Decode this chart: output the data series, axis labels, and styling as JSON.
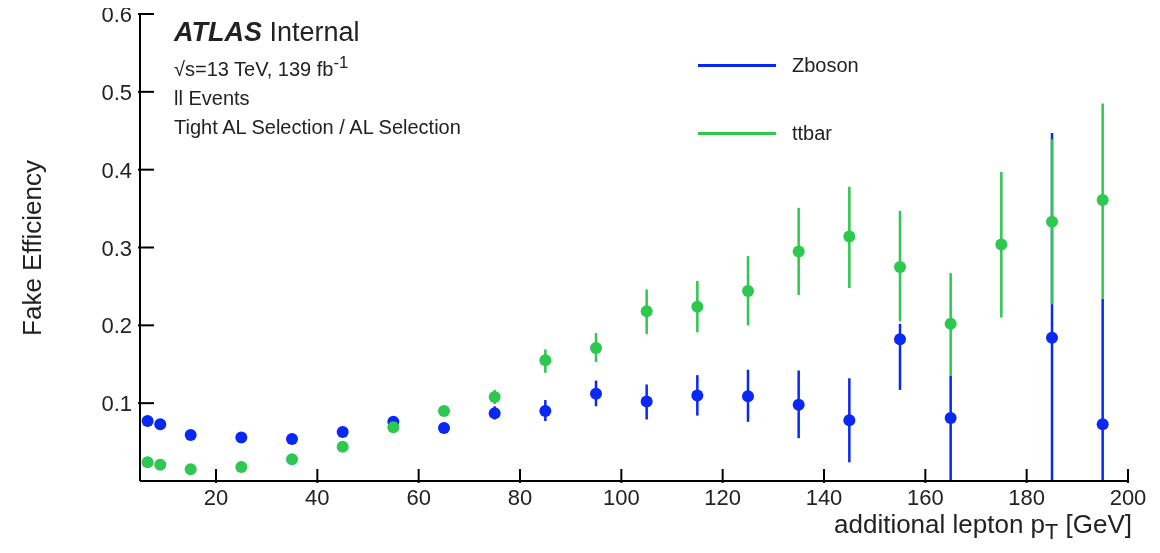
{
  "chart_data": {
    "type": "scatter",
    "xlabel": "additional lepton p$_{T}$ [GeV]",
    "ylabel": "Fake Efficiency",
    "annotations": [
      "ATLAS Internal",
      "√s=13 TeV, 139 fb$^{-1}$",
      "ll Events",
      "Tight AL Selection / AL Selection"
    ],
    "x": [
      6.5,
      9,
      15,
      25,
      35,
      45,
      55,
      65,
      75,
      85,
      95,
      105,
      115,
      125,
      135,
      145,
      155,
      165,
      175,
      185,
      195
    ],
    "series": [
      {
        "name": "Zboson",
        "color": "#0a28f5",
        "values": [
          0.077,
          0.073,
          0.059,
          0.056,
          0.054,
          0.063,
          0.076,
          0.068,
          0.087,
          0.09,
          0.112,
          0.102,
          0.11,
          0.109,
          0.098,
          0.078,
          0.182,
          0.081,
          null,
          0.184,
          0.073
        ],
        "errors": [
          null,
          null,
          null,
          null,
          null,
          null,
          null,
          null,
          [
            0.079,
            0.096
          ],
          [
            0.077,
            0.104
          ],
          [
            0.096,
            0.129
          ],
          [
            0.079,
            0.124
          ],
          [
            0.084,
            0.136
          ],
          [
            0.076,
            0.143
          ],
          [
            0.055,
            0.142
          ],
          [
            0.024,
            0.132
          ],
          [
            0.117,
            0.202
          ],
          [
            0,
            0.135
          ],
          null,
          [
            0,
            0.447
          ],
          [
            0,
            0.234
          ]
        ]
      },
      {
        "name": "ttbar",
        "color": "#2dc850",
        "values": [
          0.024,
          0.021,
          0.015,
          0.018,
          0.028,
          0.044,
          0.069,
          0.09,
          0.108,
          0.155,
          0.171,
          0.218,
          0.224,
          0.244,
          0.295,
          0.314,
          0.275,
          0.202,
          0.304,
          0.333,
          0.361
        ],
        "errors": [
          null,
          null,
          null,
          null,
          null,
          null,
          null,
          null,
          [
            0.099,
            0.117
          ],
          [
            0.139,
            0.169
          ],
          [
            0.153,
            0.19
          ],
          [
            0.189,
            0.246
          ],
          [
            0.191,
            0.257
          ],
          [
            0.2,
            0.289
          ],
          [
            0.239,
            0.351
          ],
          [
            0.248,
            0.378
          ],
          [
            0.205,
            0.347
          ],
          [
            0.135,
            0.267
          ],
          [
            0.21,
            0.397
          ],
          [
            0.227,
            0.439
          ],
          [
            0.234,
            0.485
          ]
        ]
      }
    ],
    "xlim": [
      5,
      200
    ],
    "xticks": [
      20,
      40,
      60,
      80,
      100,
      120,
      140,
      160,
      180,
      200
    ],
    "ylim": [
      0,
      0.6
    ],
    "yticks": [
      0.1,
      0.2,
      0.3,
      0.4,
      0.5,
      0.6
    ],
    "marker": "circle",
    "legend": "top right",
    "grid": false
  }
}
